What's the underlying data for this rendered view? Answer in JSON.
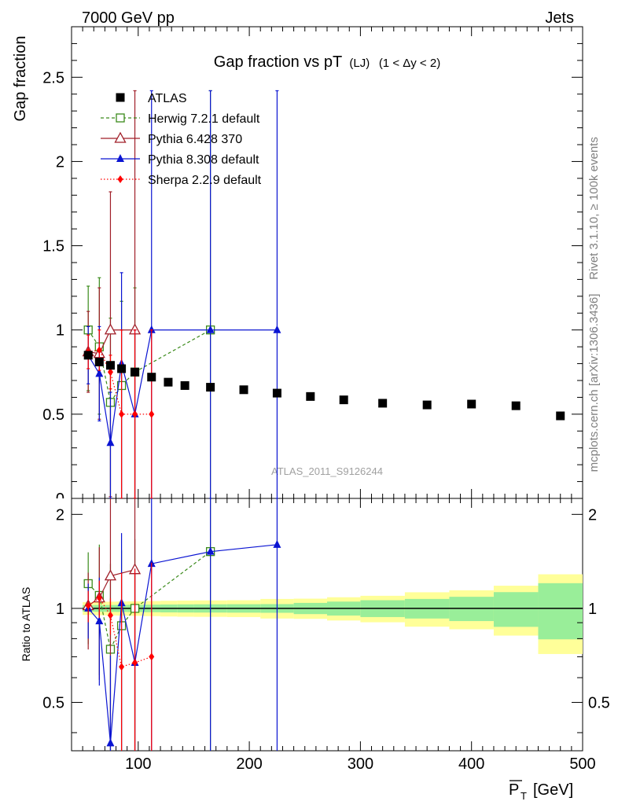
{
  "header": {
    "left": "7000 GeV pp",
    "right": "Jets"
  },
  "side_labels": {
    "rivet": "Rivet 3.1.10, ≥ 100k events",
    "mcplots": "mcplots.cern.ch [arXiv:1306.3436]"
  },
  "watermark": "ATLAS_2011_S9126244",
  "chart_data": {
    "type": "scatter",
    "title": "Gap fraction vs pT (LJ) (1 < Δy < 2)",
    "title_main": "Gap fraction vs pT",
    "title_sub": "(LJ)",
    "title_range": "(1 < Δy < 2)",
    "xlabel_base": "P",
    "xlabel_sub": "T",
    "xlabel_unit": "[GeV]",
    "ylabel": "Gap fraction",
    "ratio_ylabel": "Ratio to ATLAS",
    "xlim": [
      40,
      500
    ],
    "ylim": [
      0,
      2.8
    ],
    "ratio_ylim": [
      0.35,
      2.25
    ],
    "x_ticks": [
      100,
      200,
      300,
      400,
      500
    ],
    "y_ticks": [
      0.5,
      1,
      1.5,
      2,
      2.5
    ],
    "y_tick_labels": [
      "0.5",
      "1",
      "1.5",
      "2",
      "2.5"
    ],
    "y_zero_label": "0",
    "ratio_y_ticks": [
      0.5,
      1,
      2
    ],
    "ratio_y_tick_labels": [
      "0.5",
      "1",
      "2"
    ],
    "legend_position": "top-left",
    "data": {
      "name": "ATLAS",
      "x": [
        55,
        65,
        75,
        85,
        97,
        112,
        127,
        142,
        165,
        195,
        225,
        255,
        285,
        320,
        360,
        400,
        440,
        480
      ],
      "y": [
        0.85,
        0.81,
        0.79,
        0.77,
        0.75,
        0.72,
        0.69,
        0.67,
        0.66,
        0.645,
        0.625,
        0.605,
        0.585,
        0.565,
        0.555,
        0.56,
        0.55,
        0.49
      ],
      "x_edges": [
        [
          50,
          60
        ],
        [
          60,
          70
        ],
        [
          70,
          80
        ],
        [
          80,
          90
        ],
        [
          90,
          105
        ],
        [
          105,
          120
        ],
        [
          120,
          135
        ],
        [
          135,
          150
        ],
        [
          150,
          180
        ],
        [
          180,
          210
        ],
        [
          210,
          240
        ],
        [
          240,
          270
        ],
        [
          270,
          300
        ],
        [
          300,
          340
        ],
        [
          340,
          380
        ],
        [
          380,
          420
        ],
        [
          420,
          460
        ],
        [
          460,
          500
        ]
      ],
      "stat_band": [
        0.02,
        0.02,
        0.02,
        0.02,
        0.02,
        0.02,
        0.02,
        0.02,
        0.02,
        0.02,
        0.02,
        0.025,
        0.03,
        0.035,
        0.04,
        0.05,
        0.07,
        0.1
      ],
      "total_band": [
        0.04,
        0.04,
        0.04,
        0.04,
        0.04,
        0.04,
        0.04,
        0.04,
        0.04,
        0.04,
        0.045,
        0.045,
        0.05,
        0.055,
        0.07,
        0.08,
        0.1,
        0.14
      ]
    },
    "series": [
      {
        "name": "Herwig 7.2.1 default",
        "color": "#3a8a1a",
        "marker": "square-open",
        "dash": "4,3",
        "x": [
          55,
          65,
          75,
          85,
          97,
          165
        ],
        "y": [
          1.0,
          0.9,
          0.57,
          0.67,
          0.75,
          1.0
        ],
        "err_low": [
          0.36,
          0.4,
          0.57,
          0.67,
          0.75,
          1.0
        ],
        "err_high": [
          0.26,
          0.41,
          0.5,
          0.5,
          0.5,
          1.42
        ],
        "ratio": [
          1.2,
          1.1,
          0.74,
          0.88,
          1.0,
          1.52
        ]
      },
      {
        "name": "Pythia 6.428 370",
        "color": "#a01e28",
        "marker": "triangle-open",
        "dash": "",
        "x": [
          55,
          65,
          75,
          97
        ],
        "y": [
          0.87,
          0.86,
          1.0,
          1.0
        ],
        "err_low": [
          0.24,
          0.39,
          0.99,
          1.0
        ],
        "err_high": [
          0.24,
          0.39,
          0.82,
          1.42
        ],
        "ratio": [
          1.02,
          1.08,
          1.27,
          1.33
        ]
      },
      {
        "name": "Pythia 8.308 default",
        "color": "#0a14d2",
        "marker": "triangle-filled",
        "dash": "",
        "x": [
          55,
          65,
          75,
          85,
          97,
          112,
          165,
          225
        ],
        "y": [
          0.85,
          0.74,
          0.33,
          0.8,
          0.5,
          1.0,
          1.0,
          1.0
        ],
        "err_low": [
          0.17,
          0.28,
          0.33,
          0.8,
          0.5,
          1.0,
          1.0,
          1.0
        ],
        "err_high": [
          0.17,
          0.28,
          0.3,
          0.54,
          0.5,
          1.42,
          1.42,
          1.42
        ],
        "ratio": [
          1.0,
          0.91,
          0.37,
          1.04,
          0.67,
          1.39,
          1.52,
          1.6
        ]
      },
      {
        "name": "Sherpa 2.2.9 default",
        "color": "#ff0000",
        "marker": "diamond-filled",
        "dash": "1.5,2.5",
        "x": [
          55,
          65,
          75,
          85,
          97,
          112
        ],
        "y": [
          0.87,
          0.88,
          0.75,
          0.5,
          0.5,
          0.5
        ],
        "err_low": [
          0.1,
          0.12,
          0.1,
          0.5,
          0.5,
          0.5
        ],
        "err_high": [
          0.1,
          0.12,
          0.1,
          0.5,
          0.5,
          0.5
        ],
        "ratio": [
          1.02,
          1.08,
          0.95,
          0.65,
          0.67,
          0.7
        ]
      }
    ]
  }
}
